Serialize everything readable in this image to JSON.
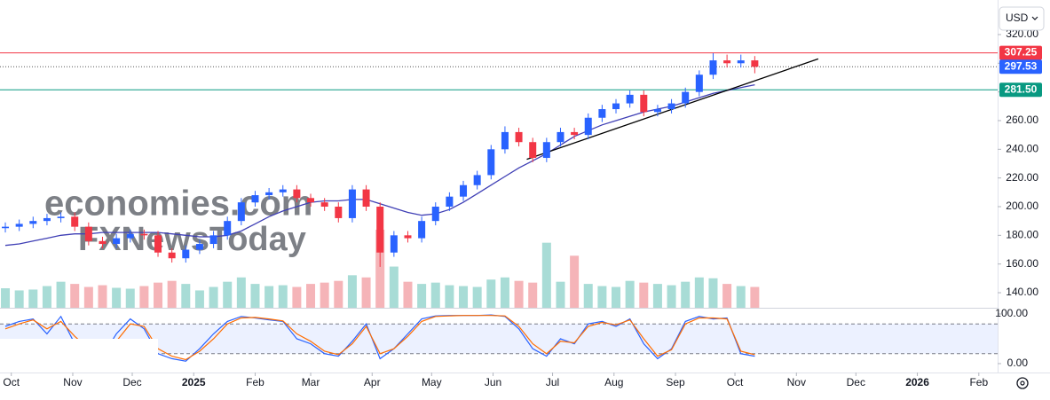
{
  "chart_data": {
    "type": "candlestick",
    "currency": "USD",
    "x": [
      -3,
      4,
      11,
      18,
      25,
      32,
      39,
      46,
      53,
      60,
      67,
      74,
      81,
      88,
      95,
      102,
      109,
      116,
      123,
      130,
      137,
      144,
      151,
      158,
      165,
      172,
      179,
      186,
      193,
      200,
      207,
      214,
      221,
      228,
      235,
      242,
      249,
      256,
      263,
      270,
      277,
      284,
      291,
      298,
      305,
      312,
      319,
      326,
      333,
      340,
      347,
      354,
      361,
      368,
      375
    ],
    "open": [
      185,
      186,
      188,
      190,
      192,
      193,
      186,
      176,
      174,
      178,
      181,
      180,
      168,
      164,
      170,
      174,
      180,
      190,
      203,
      208,
      210,
      212,
      206,
      203,
      200,
      192,
      212,
      200,
      168,
      180,
      178,
      190,
      200,
      207,
      215,
      222,
      240,
      252,
      245,
      234,
      245,
      252,
      250,
      262,
      268,
      272,
      278,
      266,
      268,
      272,
      280,
      292,
      302,
      300,
      302
    ],
    "high": [
      189,
      191,
      193,
      195,
      196,
      196,
      189,
      179,
      181,
      184,
      184,
      183,
      171,
      173,
      177,
      183,
      193,
      206,
      211,
      213,
      215,
      215,
      209,
      206,
      203,
      215,
      215,
      203,
      183,
      183,
      193,
      203,
      210,
      218,
      225,
      243,
      256,
      255,
      248,
      248,
      255,
      255,
      265,
      271,
      275,
      281,
      281,
      271,
      275,
      283,
      295,
      307,
      306,
      306,
      305
    ],
    "low": [
      182,
      183,
      185,
      187,
      189,
      183,
      173,
      171,
      171,
      175,
      177,
      165,
      161,
      161,
      167,
      171,
      177,
      187,
      200,
      205,
      207,
      203,
      200,
      197,
      189,
      189,
      197,
      158,
      165,
      175,
      175,
      187,
      197,
      204,
      212,
      219,
      237,
      242,
      231,
      231,
      242,
      247,
      247,
      259,
      265,
      269,
      263,
      263,
      265,
      269,
      277,
      289,
      297,
      297,
      293
    ],
    "close": [
      186,
      188,
      190,
      192,
      193,
      186,
      176,
      174,
      178,
      181,
      180,
      168,
      164,
      170,
      174,
      180,
      190,
      203,
      208,
      210,
      212,
      206,
      203,
      200,
      192,
      212,
      200,
      168,
      180,
      178,
      190,
      200,
      207,
      215,
      222,
      240,
      252,
      245,
      234,
      245,
      252,
      250,
      262,
      268,
      272,
      278,
      266,
      268,
      272,
      280,
      292,
      302,
      300,
      302,
      297.53
    ],
    "up_color": "#2962ff",
    "down_color": "#f23645",
    "xlim": [
      -5.7,
      496.6
    ],
    "xticks": [
      {
        "value": 0,
        "label": "Oct"
      },
      {
        "value": 31,
        "label": "Nov"
      },
      {
        "value": 61,
        "label": "Dec"
      },
      {
        "value": 92,
        "label": "2025"
      },
      {
        "value": 123,
        "label": "Feb"
      },
      {
        "value": 151,
        "label": "Mar"
      },
      {
        "value": 182,
        "label": "Apr"
      },
      {
        "value": 212,
        "label": "May"
      },
      {
        "value": 243,
        "label": "Jun"
      },
      {
        "value": 273,
        "label": "Jul"
      },
      {
        "value": 304,
        "label": "Aug"
      },
      {
        "value": 335,
        "label": "Sep"
      },
      {
        "value": 365,
        "label": "Oct"
      },
      {
        "value": 396,
        "label": "Nov"
      },
      {
        "value": 426,
        "label": "Dec"
      },
      {
        "value": 457,
        "label": "2026"
      },
      {
        "value": 488,
        "label": "Feb"
      }
    ],
    "ylim": [
      129.5,
      341
    ],
    "yticks": [
      {
        "value": 140,
        "label": "140.00"
      },
      {
        "value": 160,
        "label": "160.00"
      },
      {
        "value": 180,
        "label": "180.00"
      },
      {
        "value": 200,
        "label": "200.00"
      },
      {
        "value": 220,
        "label": "220.00"
      },
      {
        "value": 240,
        "label": "240.00"
      },
      {
        "value": 260,
        "label": "260.00"
      },
      {
        "value": 280,
        "label": "280.00"
      },
      {
        "value": 300,
        "label": "300.00"
      },
      {
        "value": 320,
        "label": "320.00"
      }
    ],
    "ma": {
      "color": "#3f3fb5",
      "values": [
        173,
        174,
        176,
        178,
        180,
        181,
        181,
        182,
        182,
        182,
        182,
        182,
        181,
        180,
        179,
        179,
        180,
        183,
        188,
        193,
        197,
        200,
        203,
        204,
        204,
        205,
        205,
        202,
        199,
        196,
        194,
        195,
        198,
        203,
        209,
        215,
        221,
        227,
        232,
        237,
        243,
        249,
        253,
        257,
        260,
        263,
        266,
        268,
        270,
        273,
        276,
        279,
        281,
        283,
        285
      ]
    },
    "volume": {
      "up_color": "#a8dcd6",
      "down_color": "#f5b4b8",
      "values": [
        45,
        40,
        42,
        50,
        60,
        55,
        48,
        52,
        46,
        44,
        50,
        58,
        62,
        55,
        40,
        48,
        60,
        70,
        55,
        50,
        52,
        48,
        55,
        58,
        62,
        75,
        70,
        180,
        95,
        60,
        55,
        58,
        52,
        50,
        48,
        65,
        70,
        62,
        58,
        150,
        60,
        120,
        55,
        50,
        48,
        62,
        58,
        55,
        52,
        60,
        70,
        68,
        55,
        50,
        48
      ]
    },
    "price_lines": [
      {
        "value": 307.25,
        "label": "307.25",
        "color": "#f23645",
        "style": "solid"
      },
      {
        "value": 297.53,
        "label": "297.53",
        "color": "#2962ff",
        "style": "dotted"
      },
      {
        "value": 281.5,
        "label": "281.50",
        "color": "#089981",
        "style": "solid"
      }
    ],
    "trendline": {
      "x": [
        260,
        407
      ],
      "y": [
        233,
        303
      ],
      "color": "#000000"
    },
    "watermark": [
      "economies.com",
      "FXNewsToday"
    ],
    "indicator": {
      "type": "stochastic",
      "ylim": [
        -17.9,
        110.7
      ],
      "yticks": [
        {
          "value": 100,
          "label": "100.00"
        },
        {
          "value": 0,
          "label": "0.00"
        }
      ],
      "bands": [
        20,
        80
      ],
      "series": [
        {
          "color": "#2962ff",
          "values": [
            75,
            85,
            90,
            60,
            95,
            40,
            20,
            15,
            60,
            90,
            70,
            20,
            10,
            5,
            30,
            60,
            85,
            95,
            92,
            88,
            85,
            50,
            40,
            20,
            15,
            45,
            80,
            10,
            30,
            60,
            90,
            96,
            97,
            97,
            97,
            98,
            95,
            70,
            30,
            15,
            50,
            40,
            80,
            85,
            75,
            90,
            40,
            10,
            30,
            85,
            95,
            90,
            92,
            20,
            15
          ]
        },
        {
          "color": "#ff6d00",
          "values": [
            70,
            80,
            88,
            70,
            85,
            55,
            30,
            20,
            45,
            80,
            75,
            30,
            15,
            8,
            25,
            50,
            80,
            92,
            93,
            90,
            86,
            60,
            45,
            25,
            18,
            40,
            75,
            20,
            30,
            55,
            85,
            95,
            96,
            97,
            97,
            97,
            96,
            75,
            40,
            20,
            45,
            42,
            75,
            83,
            78,
            88,
            50,
            15,
            28,
            80,
            92,
            92,
            90,
            25,
            18
          ]
        }
      ]
    }
  }
}
